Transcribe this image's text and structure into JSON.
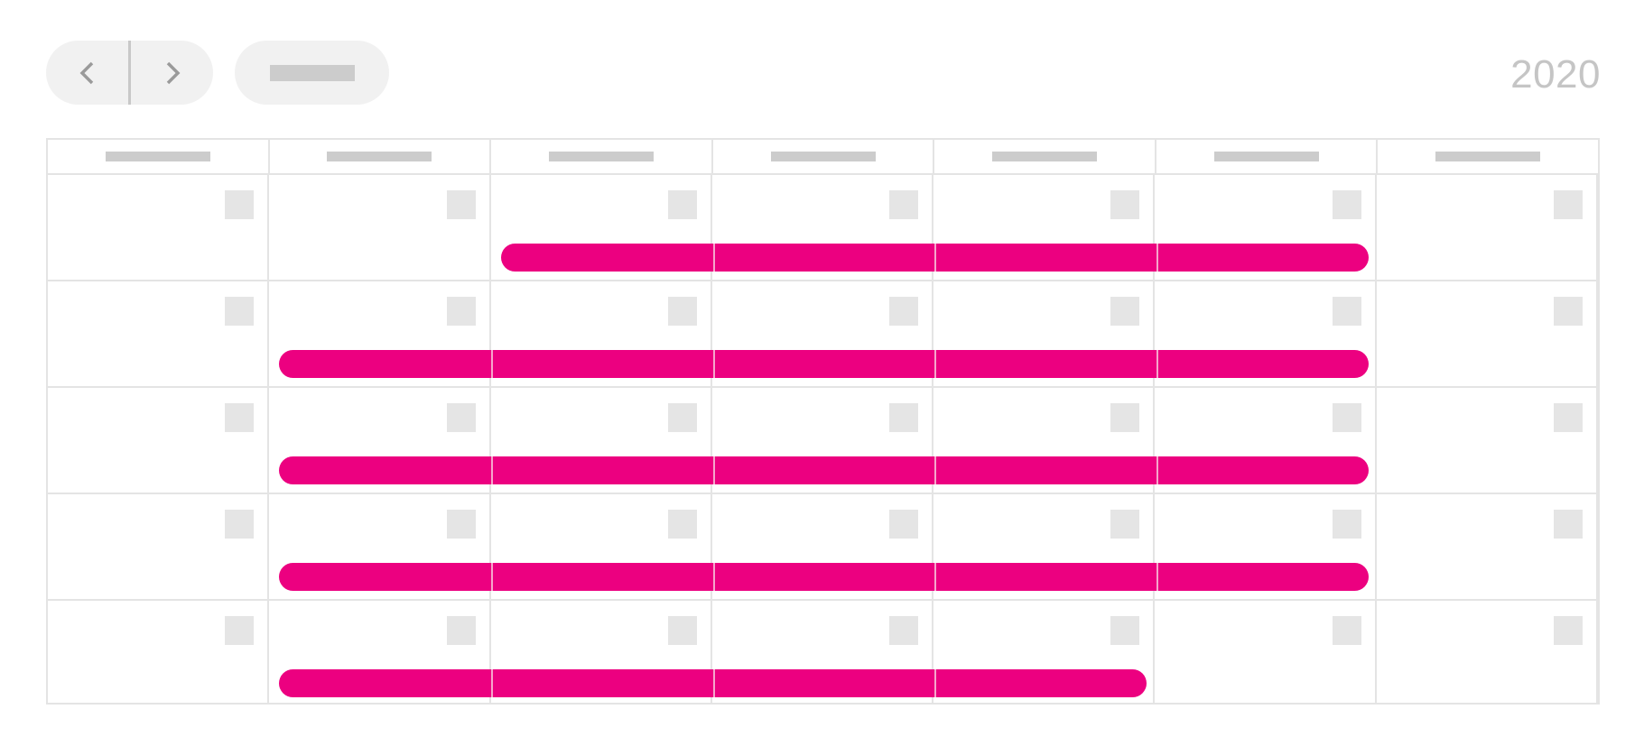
{
  "header": {
    "year": "2020",
    "nav_prev_icon": "chevron-left-icon",
    "nav_next_icon": "chevron-right-icon"
  },
  "colors": {
    "accent": "#ec0080",
    "grid": "#e4e4e4",
    "placeholder": "#cccccc",
    "button_bg": "#f1f1f1",
    "year_text": "#c5c5c5"
  },
  "calendar": {
    "columns": 7,
    "weeks": [
      {
        "event": {
          "start_col": 2,
          "end_col": 5
        }
      },
      {
        "event": {
          "start_col": 1,
          "end_col": 5
        }
      },
      {
        "event": {
          "start_col": 1,
          "end_col": 5
        }
      },
      {
        "event": {
          "start_col": 1,
          "end_col": 5
        }
      },
      {
        "event": {
          "start_col": 1,
          "end_col": 4
        }
      }
    ]
  }
}
